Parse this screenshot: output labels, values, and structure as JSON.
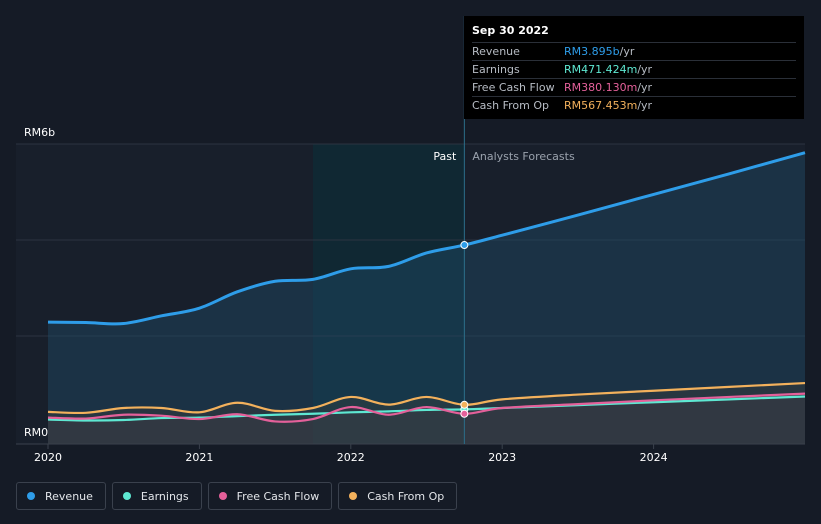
{
  "tooltip": {
    "date": "Sep 30 2022",
    "rows": [
      {
        "label": "Revenue",
        "value": "RM3.895b",
        "unit": "/yr",
        "color": "#2e9de9"
      },
      {
        "label": "Earnings",
        "value": "RM471.424m",
        "unit": "/yr",
        "color": "#5ee8d2"
      },
      {
        "label": "Free Cash Flow",
        "value": "RM380.130m",
        "unit": "/yr",
        "color": "#e4609a"
      },
      {
        "label": "Cash From Op",
        "value": "RM567.453m",
        "unit": "/yr",
        "color": "#f3b15c"
      }
    ]
  },
  "legend": [
    {
      "label": "Revenue",
      "color": "#2e9de9"
    },
    {
      "label": "Earnings",
      "color": "#5ee8d2"
    },
    {
      "label": "Free Cash Flow",
      "color": "#e4609a"
    },
    {
      "label": "Cash From Op",
      "color": "#f3b15c"
    }
  ],
  "chart_data": {
    "type": "line",
    "y_unit": "RM (billions)",
    "ylim": [
      0,
      6
    ],
    "y_tick_labels": [
      {
        "value": 6,
        "label": "RM6b"
      },
      {
        "value": 0,
        "label": "RM0"
      }
    ],
    "xlim": [
      2020.0,
      2025.0
    ],
    "x_tick_labels": [
      "2020",
      "2021",
      "2022",
      "2023",
      "2024"
    ],
    "past_label": "Past",
    "forecast_label": "Analysts Forecasts",
    "divider_x": 2022.75,
    "highlight_start_x": 2021.75,
    "grid": true,
    "series": [
      {
        "name": "Revenue",
        "color": "#2e9de9",
        "x": [
          2020.0,
          2020.25,
          2020.5,
          2020.75,
          2021.0,
          2021.25,
          2021.5,
          2021.75,
          2022.0,
          2022.25,
          2022.5,
          2022.75,
          2023.0,
          2023.5,
          2024.0,
          2024.5,
          2025.0
        ],
        "y": [
          2.29,
          2.28,
          2.26,
          2.42,
          2.58,
          2.92,
          3.14,
          3.18,
          3.4,
          3.45,
          3.73,
          3.895,
          4.1,
          4.52,
          4.95,
          5.38,
          5.82
        ]
      },
      {
        "name": "Earnings",
        "color": "#5ee8d2",
        "x": [
          2020.0,
          2020.25,
          2020.5,
          2020.75,
          2021.0,
          2021.25,
          2021.5,
          2021.75,
          2022.0,
          2022.25,
          2022.5,
          2022.75,
          2023.0,
          2023.5,
          2024.0,
          2024.5,
          2025.0
        ],
        "y": [
          0.26,
          0.24,
          0.25,
          0.29,
          0.3,
          0.33,
          0.36,
          0.38,
          0.41,
          0.43,
          0.46,
          0.471,
          0.5,
          0.56,
          0.62,
          0.68,
          0.74
        ]
      },
      {
        "name": "Free Cash Flow",
        "color": "#e4609a",
        "x": [
          2020.0,
          2020.25,
          2020.5,
          2020.75,
          2021.0,
          2021.25,
          2021.5,
          2021.75,
          2022.0,
          2022.25,
          2022.5,
          2022.75,
          2023.0,
          2023.5,
          2024.0,
          2024.5,
          2025.0
        ],
        "y": [
          0.3,
          0.28,
          0.36,
          0.34,
          0.27,
          0.37,
          0.22,
          0.27,
          0.52,
          0.36,
          0.52,
          0.38,
          0.5,
          0.58,
          0.66,
          0.73,
          0.8
        ]
      },
      {
        "name": "Cash From Op",
        "color": "#f3b15c",
        "x": [
          2020.0,
          2020.25,
          2020.5,
          2020.75,
          2021.0,
          2021.25,
          2021.5,
          2021.75,
          2022.0,
          2022.25,
          2022.5,
          2022.75,
          2023.0,
          2023.5,
          2024.0,
          2024.5,
          2025.0
        ],
        "y": [
          0.42,
          0.4,
          0.5,
          0.5,
          0.41,
          0.61,
          0.44,
          0.5,
          0.73,
          0.57,
          0.73,
          0.567,
          0.68,
          0.78,
          0.86,
          0.94,
          1.02
        ]
      }
    ]
  }
}
